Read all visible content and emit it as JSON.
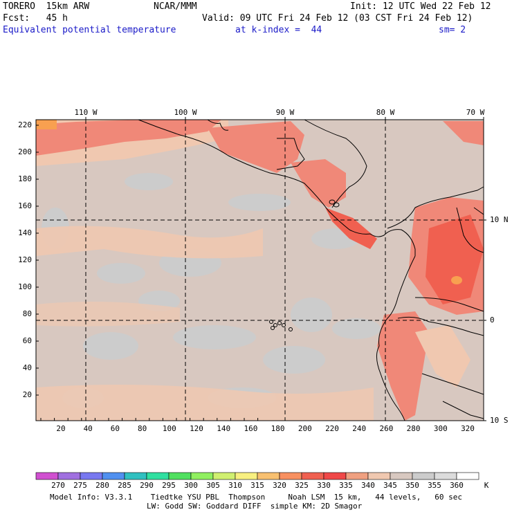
{
  "header": {
    "model": "TORERO  15km ARW",
    "org": "NCAR/MMM",
    "init": "Init: 12 UTC Wed 22 Feb 12",
    "fcst": "Fcst:   45 h",
    "valid": "Valid: 09 UTC Fri 24 Feb 12 (03 CST Fri 24 Feb 12)",
    "field": "Equivalent potential temperature",
    "level": "at k-index =  44",
    "smooth": "sm= 2"
  },
  "top_axis": [
    "110 W",
    "100 W",
    "90 W",
    "80 W",
    "70 W"
  ],
  "right_axis": [
    "10 N",
    "0",
    "10 S"
  ],
  "left_axis": [
    "220",
    "200",
    "180",
    "160",
    "140",
    "120",
    "100",
    "80",
    "60",
    "40",
    "20"
  ],
  "bottom_axis": [
    "20",
    "40",
    "60",
    "80",
    "100",
    "120",
    "140",
    "160",
    "180",
    "200",
    "220",
    "240",
    "260",
    "280",
    "300",
    "320"
  ],
  "colorbar": {
    "levels": [
      "270",
      "275",
      "280",
      "285",
      "290",
      "295",
      "300",
      "305",
      "310",
      "315",
      "320",
      "325",
      "330",
      "335",
      "340",
      "345",
      "350",
      "355",
      "360"
    ],
    "unit": "K",
    "colors": [
      "#d050d0",
      "#a070e0",
      "#7878f0",
      "#5090f0",
      "#30c0c0",
      "#30e0a0",
      "#50e060",
      "#90f060",
      "#d0f070",
      "#f8f080",
      "#f8c070",
      "#f89060",
      "#f06050",
      "#f04848",
      "#f0a080",
      "#f0c8b0",
      "#d8c8c0",
      "#cccccc",
      "#dcdcdc",
      "#ffffff"
    ]
  },
  "map_colors": {
    "base": "#d8c8c0",
    "cool": "#cccccc",
    "warm": "#f0c8b0",
    "hot": "#f08878",
    "hotter": "#f06050",
    "hottest": "#f8a050"
  },
  "footer": {
    "line1": "Model Info: V3.3.1    Tiedtke YSU PBL  Thompson     Noah LSM  15 km,   44 levels,   60 sec",
    "line2": "LW: Godd SW: Goddard DIFF  simple KM: 2D Smagor"
  }
}
